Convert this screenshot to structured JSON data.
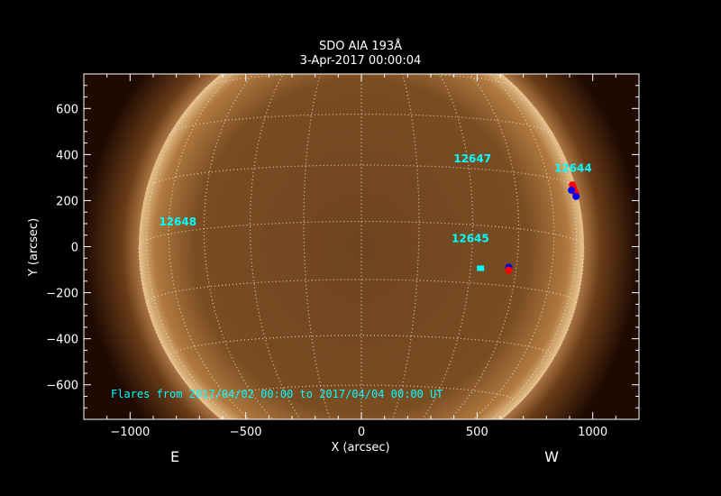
{
  "chart_data": {
    "type": "image",
    "title": "SDO AIA 193Å",
    "subtitle": "3-Apr-2017 00:00:04",
    "xlabel": "X (arcsec)",
    "ylabel": "Y (arcsec)",
    "xlim": [
      -1200,
      1200
    ],
    "ylim": [
      -750,
      750
    ],
    "xticks": [
      -1000,
      -500,
      0,
      500,
      1000
    ],
    "yticks": [
      -600,
      -400,
      -200,
      0,
      200,
      400,
      600
    ],
    "xtick_labels": [
      "−1000",
      "−500",
      "0",
      "500",
      "1000"
    ],
    "ytick_labels": [
      "−600",
      "−400",
      "−200",
      "0",
      "200",
      "400",
      "600"
    ],
    "grid": "heliographic, 15° spacing, dotted",
    "east_label": "E",
    "west_label": "W",
    "note": "Flares from 2017/04/02 00:00 to 2017/04/04 00:00 UT",
    "active_regions": [
      {
        "name": "12644",
        "x": 915,
        "y": 325
      },
      {
        "name": "12647",
        "x": 480,
        "y": 366
      },
      {
        "name": "12645",
        "x": 471,
        "y": 20
      },
      {
        "name": "12648",
        "x": -794,
        "y": 93
      }
    ],
    "flare_markers": [
      {
        "x": 912,
        "y": 268,
        "color": "#ff0000"
      },
      {
        "x": 916,
        "y": 255,
        "color": "#ff0000"
      },
      {
        "x": 920,
        "y": 243,
        "color": "#ff0000"
      },
      {
        "x": 926,
        "y": 232,
        "color": "#ff0000"
      },
      {
        "x": 908,
        "y": 245,
        "color": "#0000ff"
      },
      {
        "x": 928,
        "y": 218,
        "color": "#0000ff"
      },
      {
        "x": 515,
        "y": -94,
        "color": "#00ffff"
      },
      {
        "x": 637,
        "y": -90,
        "color": "#0000ff"
      },
      {
        "x": 637,
        "y": -102,
        "color": "#ff0000"
      }
    ],
    "colors": {
      "accent": "#00ffff",
      "disk": "#8a5a2a",
      "background": "#000000"
    }
  }
}
